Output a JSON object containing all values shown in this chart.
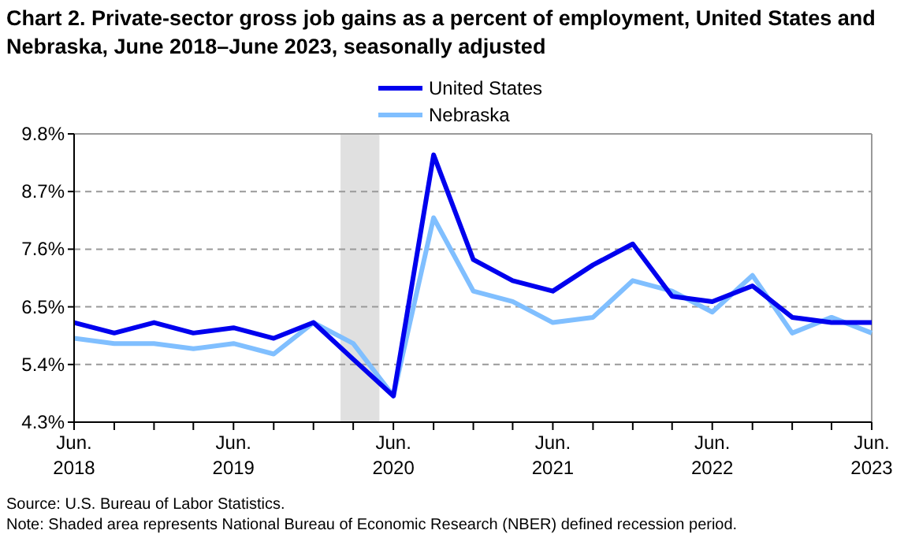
{
  "chart_data": {
    "type": "line",
    "title": "Chart 2. Private-sector gross job gains as a percent of employment, United States and Nebraska, June 2018–June 2023, seasonally adjusted",
    "x": [
      "2018-06",
      "2018-09",
      "2018-12",
      "2019-03",
      "2019-06",
      "2019-09",
      "2019-12",
      "2020-03",
      "2020-06",
      "2020-09",
      "2020-12",
      "2021-03",
      "2021-06",
      "2021-09",
      "2021-12",
      "2022-03",
      "2022-06",
      "2022-09",
      "2022-12",
      "2023-03",
      "2023-06"
    ],
    "series": [
      {
        "name": "United States",
        "color": "#0000ee",
        "values": [
          6.2,
          6.0,
          6.2,
          6.0,
          6.1,
          5.9,
          6.2,
          5.5,
          4.8,
          9.4,
          7.4,
          7.0,
          6.8,
          7.3,
          7.7,
          6.7,
          6.6,
          6.9,
          6.3,
          6.2,
          6.2
        ]
      },
      {
        "name": "Nebraska",
        "color": "#80bfff",
        "values": [
          5.9,
          5.8,
          5.8,
          5.7,
          5.8,
          5.6,
          6.2,
          5.8,
          4.8,
          8.2,
          6.8,
          6.6,
          6.2,
          6.3,
          7.0,
          6.8,
          6.4,
          7.1,
          6.0,
          6.3,
          6.0
        ]
      }
    ],
    "xlim": [
      "2018-06",
      "2023-06"
    ],
    "xticks": [
      {
        "value": "2018-06",
        "label": "Jun. 2018"
      },
      {
        "value": "2018-09",
        "label": null
      },
      {
        "value": "2018-12",
        "label": null
      },
      {
        "value": "2019-03",
        "label": null
      },
      {
        "value": "2019-06",
        "label": "Jun. 2019"
      },
      {
        "value": "2019-09",
        "label": null
      },
      {
        "value": "2019-12",
        "label": null
      },
      {
        "value": "2020-03",
        "label": null
      },
      {
        "value": "2020-06",
        "label": "Jun. 2020"
      },
      {
        "value": "2020-09",
        "label": null
      },
      {
        "value": "2020-12",
        "label": null
      },
      {
        "value": "2021-03",
        "label": null
      },
      {
        "value": "2021-06",
        "label": "Jun. 2021"
      },
      {
        "value": "2021-09",
        "label": null
      },
      {
        "value": "2021-12",
        "label": null
      },
      {
        "value": "2022-03",
        "label": null
      },
      {
        "value": "2022-06",
        "label": "Jun. 2022"
      },
      {
        "value": "2022-09",
        "label": null
      },
      {
        "value": "2022-12",
        "label": null
      },
      {
        "value": "2023-03",
        "label": null
      },
      {
        "value": "2023-06",
        "label": "Jun. 2023"
      }
    ],
    "ylim": [
      4.3,
      9.8
    ],
    "yticks": [
      {
        "value": 4.3,
        "label": "4.3%"
      },
      {
        "value": 5.4,
        "label": "5.4%"
      },
      {
        "value": 6.5,
        "label": "6.5%"
      },
      {
        "value": 7.6,
        "label": "7.6%"
      },
      {
        "value": 8.7,
        "label": "8.7%"
      },
      {
        "value": 9.8,
        "label": "9.8%"
      }
    ],
    "grid": "y",
    "legend": "top",
    "bands": [
      {
        "axis": "x",
        "from": "2020-02",
        "to": "2020-04-30",
        "color": "#e0e0e0"
      }
    ],
    "annotations": [
      "Source: U.S. Bureau of Labor Statistics.",
      "Note: Shaded area represents National Bureau of Economic Research (NBER) defined recession period."
    ]
  }
}
